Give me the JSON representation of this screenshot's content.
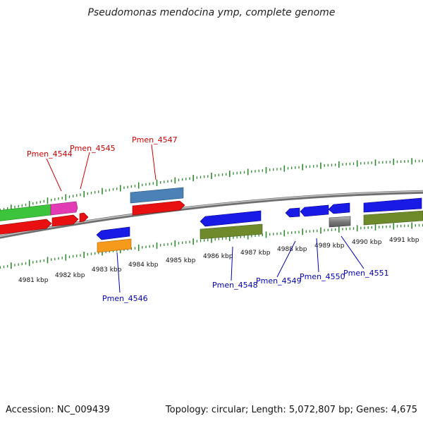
{
  "title": "Pseudomonas mendocina ymp, complete genome",
  "footer": {
    "accession": "Accession: NC_009439",
    "summary": "Topology: circular; Length: 5,072,807 bp; Genes: 4,675"
  },
  "colors": {
    "backbone": "#8a8a8a",
    "tick": "#2e8b2e",
    "label_forward": "#cc0000",
    "label_reverse": "#0000b3"
  },
  "scale_labels": [
    "4981 kbp",
    "4982 kbp",
    "4983 kbp",
    "4984 kbp",
    "4985 kbp",
    "4986 kbp",
    "4987 kbp",
    "4988 kbp",
    "4989 kbp",
    "4990 kbp",
    "4991 kbp"
  ],
  "gene_labels": [
    {
      "text": "Pmen_4544",
      "strand": "forward"
    },
    {
      "text": "Pmen_4545",
      "strand": "forward"
    },
    {
      "text": "Pmen_4547",
      "strand": "forward"
    },
    {
      "text": "Pmen_4546",
      "strand": "reverse"
    },
    {
      "text": "Pmen_4548",
      "strand": "reverse"
    },
    {
      "text": "Pmen_4549",
      "strand": "reverse"
    },
    {
      "text": "Pmen_4550",
      "strand": "reverse"
    },
    {
      "text": "Pmen_4551",
      "strand": "reverse"
    }
  ]
}
